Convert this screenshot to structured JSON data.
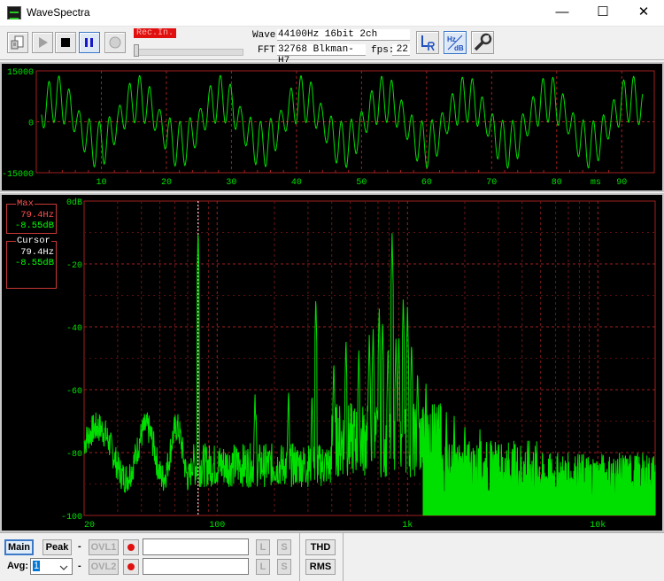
{
  "window": {
    "title": "WaveSpectra",
    "minimize": "—",
    "maximize": "☐",
    "close": "✕"
  },
  "toolbar": {
    "rec_label": "Rec.In.",
    "wave_label": "Wave:",
    "wave_value": "44100Hz 16bit 2ch",
    "fft_label": "FFT:",
    "fft_value": "32768 Blkman-H7",
    "fps_label": "fps:",
    "fps_value": "22",
    "icons": [
      "open-file-icon",
      "play-icon",
      "stop-icon",
      "pause-icon",
      "record-icon",
      "lr-channel-icon",
      "hz-db-icon",
      "settings-wrench-icon"
    ]
  },
  "wave_panel": {
    "y_ticks": [
      "15000",
      "0",
      "-15000"
    ],
    "x_ticks": [
      "10",
      "20",
      "30",
      "40",
      "50",
      "60",
      "70",
      "80",
      "90"
    ],
    "x_unit": "ms",
    "trace_color": "#00e000",
    "grid_color": "#a02020"
  },
  "spectrum_panel": {
    "y_ticks": [
      "0dB",
      "-20",
      "-40",
      "-60",
      "-80",
      "-100"
    ],
    "x_ticks": [
      "20",
      "100",
      "1k",
      "10k"
    ],
    "max_box": {
      "title": "Max",
      "freq": "79.4Hz",
      "level": "-8.55dB"
    },
    "cursor_box": {
      "title": "Cursor",
      "freq": "79.4Hz",
      "level": "-8.55dB"
    },
    "trace_color": "#00e000",
    "grid_color": "#a02020"
  },
  "bottom": {
    "main": "Main",
    "peak": "Peak",
    "avg_label": "Avg:",
    "avg_value": "1",
    "dash": "-",
    "ovl1": "OVL1",
    "ovl2": "OVL2",
    "l": "L",
    "s": "S",
    "thd": "THD",
    "rms": "RMS"
  }
}
